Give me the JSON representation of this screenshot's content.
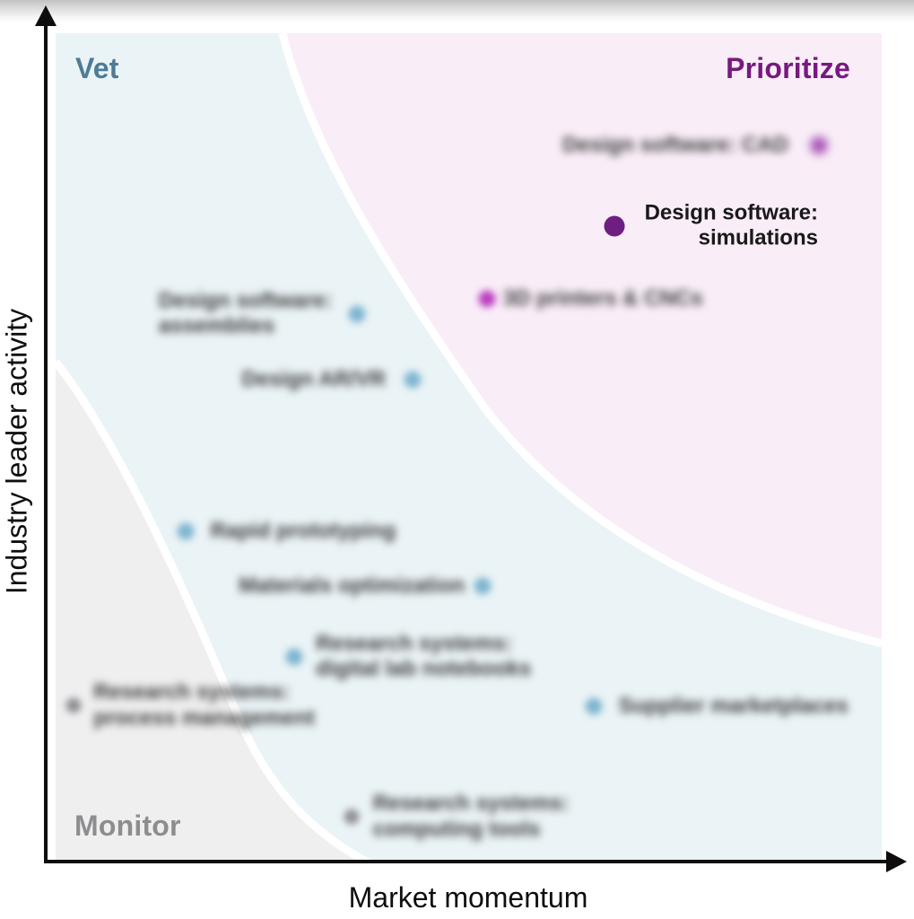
{
  "chart_data": {
    "type": "scatter",
    "xlabel": "Market momentum",
    "ylabel": "Industry leader activity",
    "grid": false,
    "legend": false,
    "axis_color": "#0d0d0d",
    "zones": [
      {
        "name": "Vet",
        "position": "top-left",
        "label_color": "#4e7b96",
        "bg": "#eaf3f6"
      },
      {
        "name": "Prioritize",
        "position": "top-right",
        "label_color": "#761a7e",
        "bg": "#f9edf8"
      },
      {
        "name": "Monitor",
        "position": "bottom-left",
        "label_color": "#8d8d8f",
        "bg": "#efeff0"
      }
    ],
    "points": [
      {
        "id": "design-software-cad",
        "label_lines": [
          "Design software: CAD"
        ],
        "blurred": true,
        "x_pct": 92.4,
        "y_pct": 13.5,
        "dot_color": "#a958b7",
        "dot_size": 20,
        "dot_blur": 5,
        "label_side": "left",
        "gap": 34,
        "zone": "Prioritize"
      },
      {
        "id": "design-software-simulations",
        "label_lines": [
          "Design software:",
          "simulations"
        ],
        "blurred": false,
        "x_pct": 67.6,
        "y_pct": 23.2,
        "dot_color": "#6e1e80",
        "dot_size": 23,
        "dot_blur": 0,
        "label_side": "right",
        "text_align": "right",
        "gap": 34,
        "zone": "Prioritize"
      },
      {
        "id": "3d-printers-cncs",
        "label_lines": [
          "3D printers & CNCs"
        ],
        "blurred": true,
        "x_pct": 52.2,
        "y_pct": 32.0,
        "dot_color": "#bb3fc0",
        "dot_size": 19,
        "dot_blur": 4,
        "label_side": "right",
        "gap": 18,
        "zone": "Prioritize"
      },
      {
        "id": "design-software-assemblies",
        "label_lines": [
          "Design software:",
          "assemblies"
        ],
        "blurred": true,
        "x_pct": 36.5,
        "y_pct": 33.8,
        "dot_color": "#7fb5d0",
        "dot_size": 19,
        "dot_blur": 4,
        "label_side": "left",
        "text_align": "left",
        "gap": 28,
        "zone": "Vet"
      },
      {
        "id": "design-ar-vr",
        "label_lines": [
          "Design AR/VR"
        ],
        "blurred": true,
        "x_pct": 43.2,
        "y_pct": 41.7,
        "dot_color": "#7fb5d0",
        "dot_size": 19,
        "dot_blur": 4,
        "label_side": "left",
        "gap": 30,
        "zone": "Vet"
      },
      {
        "id": "rapid-prototyping",
        "label_lines": [
          "Rapid prototyping"
        ],
        "blurred": true,
        "x_pct": 15.7,
        "y_pct": 60.0,
        "dot_color": "#7fb5d0",
        "dot_size": 19,
        "dot_blur": 4,
        "label_side": "right",
        "gap": 28,
        "zone": "Vet"
      },
      {
        "id": "materials-optimization",
        "label_lines": [
          "Materials optimization"
        ],
        "blurred": true,
        "x_pct": 51.7,
        "y_pct": 66.6,
        "dot_color": "#7fb5d0",
        "dot_size": 19,
        "dot_blur": 4,
        "label_side": "left",
        "gap": 20,
        "zone": "Vet"
      },
      {
        "id": "research-systems-digital-lab-notebooks",
        "label_lines": [
          "Research systems:",
          "digital lab notebooks"
        ],
        "blurred": true,
        "x_pct": 28.9,
        "y_pct": 75.1,
        "dot_color": "#7fb5d0",
        "dot_size": 19,
        "dot_blur": 4,
        "label_side": "right",
        "gap": 24,
        "zone": "Vet"
      },
      {
        "id": "research-systems-process-management",
        "label_lines": [
          "Research systems:",
          "process management"
        ],
        "blurred": true,
        "x_pct": 2.2,
        "y_pct": 81.0,
        "dot_color": "#8f9094",
        "dot_size": 17,
        "dot_blur": 4,
        "label_side": "right",
        "gap": 22,
        "zone": "Monitor"
      },
      {
        "id": "supplier-marketplaces",
        "label_lines": [
          "Supplier marketplaces"
        ],
        "blurred": true,
        "x_pct": 65.1,
        "y_pct": 81.1,
        "dot_color": "#7fb5d0",
        "dot_size": 19,
        "dot_blur": 4,
        "label_side": "right",
        "gap": 28,
        "zone": "Vet"
      },
      {
        "id": "research-systems-computing-tools",
        "label_lines": [
          "Research systems:",
          "computing tools"
        ],
        "blurred": true,
        "x_pct": 35.8,
        "y_pct": 94.4,
        "dot_color": "#8f9094",
        "dot_size": 17,
        "dot_blur": 4,
        "label_side": "right",
        "gap": 24,
        "zone": "Monitor"
      }
    ]
  }
}
